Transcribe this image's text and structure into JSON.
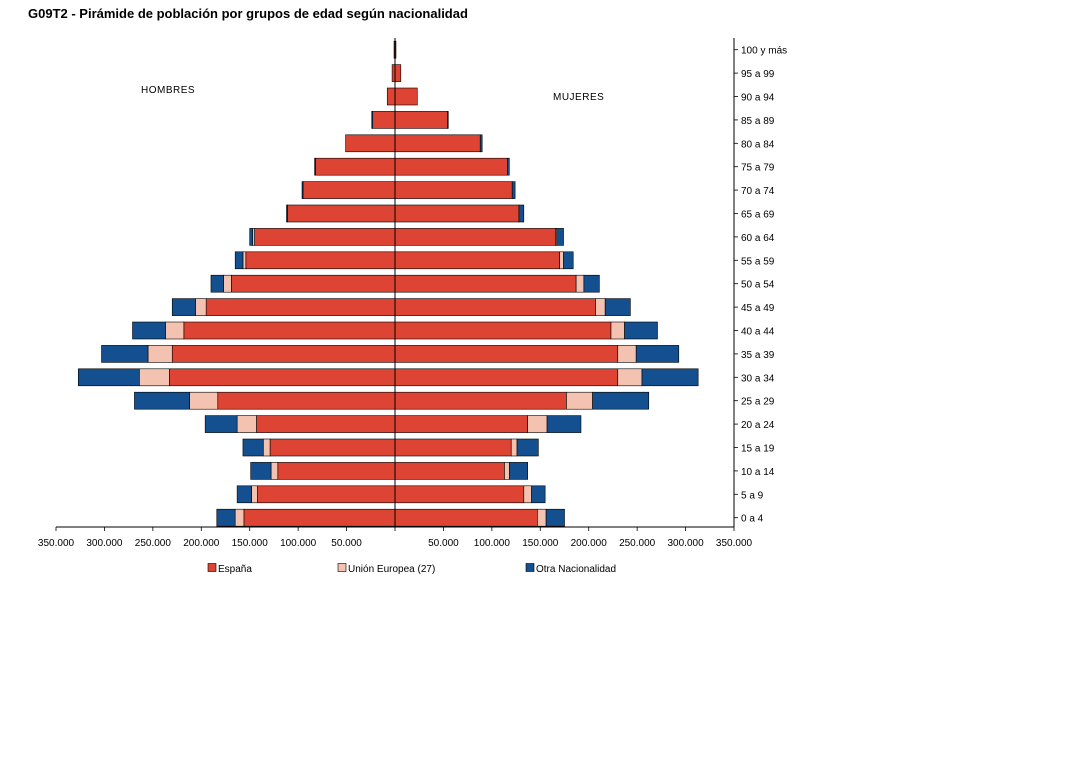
{
  "title": "G09T2 - Pirámide de población por grupos de edad según nacionalidad",
  "chart_data": {
    "type": "bar",
    "orientation": "horizontal",
    "stacked": true,
    "title": "G09T2 - Pirámide de población por grupos de edad según nacionalidad",
    "left_label": "HOMBRES",
    "right_label": "MUJERES",
    "categories": [
      "100 y más",
      "95 a 99",
      "90 a 94",
      "85 a 89",
      "80 a 84",
      "75 a 79",
      "70 a 74",
      "65 a 69",
      "60 a 64",
      "55 a 59",
      "50 a 54",
      "45 a 49",
      "40 a 44",
      "35 a 39",
      "30 a 34",
      "25 a 29",
      "20 a 24",
      "15 a 19",
      "10 a 14",
      "5 a 9",
      "0 a 4"
    ],
    "xlim": [
      -350000,
      350000
    ],
    "xticks": [
      {
        "value": -350000,
        "label": "350.000"
      },
      {
        "value": -300000,
        "label": "300.000"
      },
      {
        "value": -250000,
        "label": "250.000"
      },
      {
        "value": -200000,
        "label": "200.000"
      },
      {
        "value": -150000,
        "label": "150.000"
      },
      {
        "value": -100000,
        "label": "100.000"
      },
      {
        "value": -50000,
        "label": "50.000"
      },
      {
        "value": 50000,
        "label": "50.000"
      },
      {
        "value": 100000,
        "label": "100.000"
      },
      {
        "value": 150000,
        "label": "150.000"
      },
      {
        "value": 200000,
        "label": "200.000"
      },
      {
        "value": 250000,
        "label": "250.000"
      },
      {
        "value": 300000,
        "label": "300.000"
      },
      {
        "value": 350000,
        "label": "350.000"
      }
    ],
    "legend_position": "bottom",
    "series": [
      {
        "name": "España",
        "color": "#dd4433",
        "hombres": [
          1000,
          3000,
          8000,
          23000,
          51000,
          82000,
          95000,
          111000,
          145000,
          154000,
          169000,
          195000,
          218000,
          230000,
          233000,
          183000,
          143000,
          129000,
          121000,
          142000,
          156000
        ],
        "mujeres": [
          1000,
          6000,
          23000,
          54000,
          88000,
          116000,
          121000,
          128000,
          166000,
          170000,
          187000,
          207000,
          223000,
          230000,
          230000,
          177000,
          137000,
          120000,
          113000,
          133000,
          147000
        ]
      },
      {
        "name": "Unión Europea (27)",
        "color": "#f4c2b0",
        "hombres": [
          0,
          0,
          0,
          0,
          0,
          0,
          0,
          0,
          2000,
          3000,
          8000,
          11000,
          19000,
          25000,
          31000,
          29000,
          20000,
          7000,
          7000,
          6000,
          9000
        ],
        "mujeres": [
          0,
          0,
          0,
          0,
          0,
          0,
          0,
          0,
          1000,
          4000,
          8000,
          10000,
          14000,
          19000,
          25000,
          27000,
          20000,
          6000,
          5000,
          8000,
          9000
        ]
      },
      {
        "name": "Otra Nacionalidad",
        "color": "#14508f",
        "hombres": [
          0,
          0,
          0,
          1000,
          0,
          1000,
          1000,
          1000,
          3000,
          8000,
          13000,
          24000,
          34000,
          48000,
          63000,
          57000,
          33000,
          21000,
          21000,
          15000,
          19000
        ],
        "mujeres": [
          0,
          0,
          0,
          1000,
          2000,
          2000,
          3000,
          5000,
          7000,
          10000,
          16000,
          26000,
          34000,
          44000,
          58000,
          58000,
          35000,
          22000,
          19000,
          14000,
          19000
        ]
      }
    ]
  }
}
